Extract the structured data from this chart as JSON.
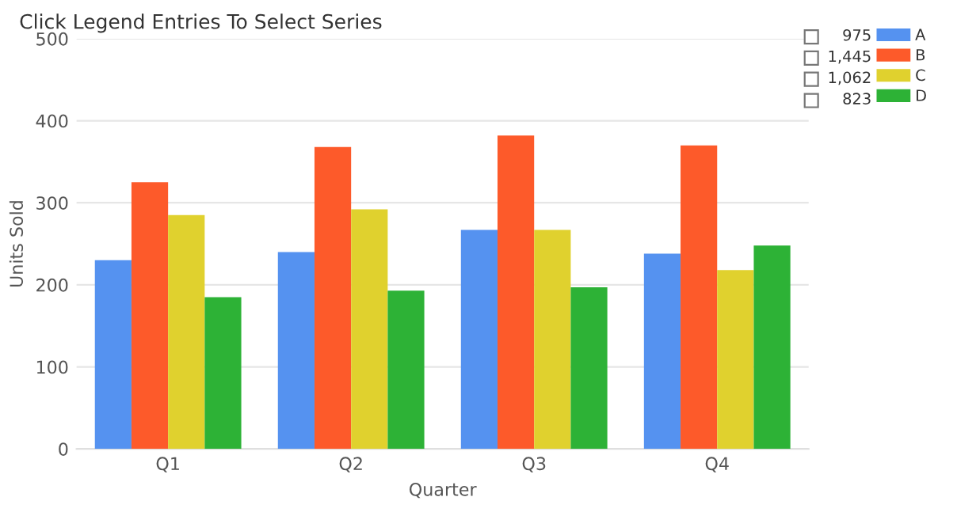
{
  "chart_data": {
    "type": "bar",
    "title": "Click Legend Entries To Select Series",
    "xlabel": "Quarter",
    "ylabel": "Units Sold",
    "categories": [
      "Q1",
      "Q2",
      "Q3",
      "Q4"
    ],
    "series": [
      {
        "name": "A",
        "color": "#5592f0",
        "values": [
          230,
          240,
          267,
          238
        ]
      },
      {
        "name": "B",
        "color": "#fd5a2a",
        "values": [
          325,
          368,
          382,
          370
        ]
      },
      {
        "name": "C",
        "color": "#e0d12e",
        "values": [
          285,
          292,
          267,
          218
        ]
      },
      {
        "name": "D",
        "color": "#2db236",
        "values": [
          185,
          193,
          197,
          248
        ]
      }
    ],
    "annotations": [
      "975",
      "1,445",
      "1,062",
      "823"
    ],
    "ylim": [
      0,
      500
    ],
    "yticks": [
      0,
      100,
      200,
      300,
      400,
      500
    ],
    "grid": "y",
    "legend": "top right"
  }
}
